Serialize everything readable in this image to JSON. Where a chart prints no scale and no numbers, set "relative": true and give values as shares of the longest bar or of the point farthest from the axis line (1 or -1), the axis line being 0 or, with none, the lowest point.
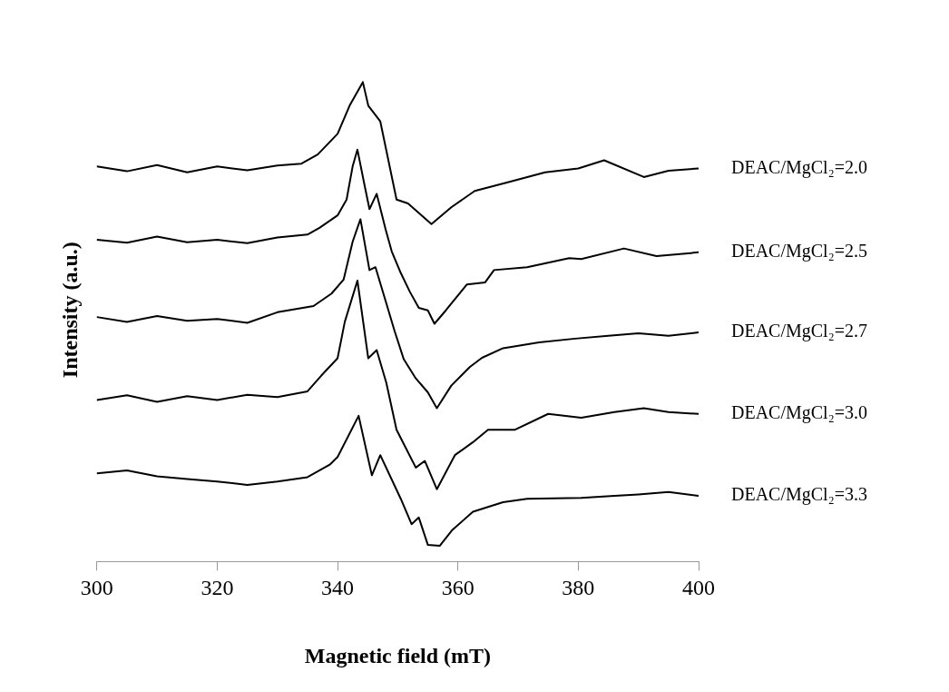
{
  "chart_data": {
    "type": "line",
    "xlabel": "Magnetic field (mT)",
    "ylabel": "Intensity (a.u.)",
    "relative": true,
    "xlim": [
      300,
      400
    ],
    "xticks": [
      300,
      320,
      340,
      360,
      380,
      400
    ],
    "grid": false,
    "legend": false,
    "marker": "none",
    "line_style": "solid",
    "series": [
      {
        "name": "DEAC/MgCl₂=2.0",
        "color": "#000000",
        "x": [
          300,
          305,
          310,
          315,
          320,
          325,
          330,
          334,
          336.7,
          340,
          342,
          344.2,
          345.1,
          347.1,
          349.8,
          351.7,
          355.6,
          358.9,
          362.8,
          368,
          374.5,
          380,
          384.3,
          390.9,
          395,
          400
        ],
        "values": [
          0.824,
          0.814,
          0.827,
          0.812,
          0.824,
          0.816,
          0.826,
          0.83,
          0.849,
          0.892,
          0.951,
          1.0,
          0.951,
          0.918,
          0.755,
          0.747,
          0.704,
          0.739,
          0.773,
          0.79,
          0.812,
          0.82,
          0.837,
          0.802,
          0.815,
          0.82
        ]
      },
      {
        "name": "DEAC/MgCl₂=2.5",
        "color": "#000000",
        "x": [
          300,
          305,
          310,
          315,
          320,
          325,
          330,
          335,
          337,
          340,
          341.5,
          342.5,
          343.3,
          344.5,
          345.3,
          346.5,
          348,
          349,
          350.5,
          352,
          353.5,
          355,
          356.1,
          358,
          361.5,
          364.5,
          366,
          371.5,
          378.5,
          380.5,
          387.6,
          393,
          400
        ],
        "values": [
          0.671,
          0.665,
          0.678,
          0.666,
          0.671,
          0.664,
          0.676,
          0.682,
          0.696,
          0.722,
          0.755,
          0.824,
          0.859,
          0.784,
          0.735,
          0.767,
          0.692,
          0.647,
          0.602,
          0.563,
          0.529,
          0.524,
          0.496,
          0.524,
          0.578,
          0.582,
          0.608,
          0.614,
          0.633,
          0.631,
          0.653,
          0.637,
          0.645
        ]
      },
      {
        "name": "DEAC/MgCl₂=2.7",
        "color": "#000000",
        "x": [
          300,
          305,
          310,
          315,
          320,
          325,
          330,
          336,
          339,
          341,
          342.5,
          343.8,
          345.3,
          346.3,
          348,
          349.5,
          351,
          353,
          355,
          356.5,
          358.9,
          362,
          364,
          367.5,
          373.5,
          379.5,
          385,
          390,
          395,
          400
        ],
        "values": [
          0.51,
          0.5,
          0.512,
          0.502,
          0.506,
          0.498,
          0.52,
          0.533,
          0.559,
          0.588,
          0.667,
          0.714,
          0.608,
          0.614,
          0.543,
          0.48,
          0.422,
          0.382,
          0.353,
          0.32,
          0.367,
          0.406,
          0.425,
          0.445,
          0.457,
          0.465,
          0.471,
          0.476,
          0.471,
          0.478
        ]
      },
      {
        "name": "DEAC/MgCl₂=3.0",
        "color": "#000000",
        "x": [
          300,
          305,
          310,
          315,
          320,
          325,
          330,
          335,
          337.3,
          340,
          341.2,
          343.3,
          345.1,
          346.5,
          348.1,
          349.8,
          353,
          354.5,
          356.5,
          359.5,
          362.5,
          365,
          369.5,
          375,
          380.5,
          386,
          390.9,
          395,
          400
        ],
        "values": [
          0.337,
          0.347,
          0.333,
          0.345,
          0.337,
          0.348,
          0.343,
          0.355,
          0.388,
          0.424,
          0.5,
          0.586,
          0.424,
          0.441,
          0.373,
          0.275,
          0.196,
          0.21,
          0.151,
          0.222,
          0.249,
          0.275,
          0.275,
          0.308,
          0.3,
          0.312,
          0.32,
          0.312,
          0.308
        ]
      },
      {
        "name": "DEAC/MgCl₂=3.3",
        "color": "#000000",
        "x": [
          300,
          305,
          310,
          315,
          320,
          325,
          330,
          335,
          338.7,
          340,
          343.5,
          345.7,
          347.1,
          350.5,
          352.3,
          353.5,
          355,
          357,
          359,
          362.5,
          367.5,
          371.5,
          380.5,
          386,
          390,
          395,
          400
        ],
        "values": [
          0.184,
          0.19,
          0.178,
          0.172,
          0.167,
          0.16,
          0.167,
          0.176,
          0.202,
          0.218,
          0.304,
          0.18,
          0.222,
          0.131,
          0.078,
          0.092,
          0.035,
          0.033,
          0.065,
          0.104,
          0.124,
          0.131,
          0.133,
          0.137,
          0.14,
          0.145,
          0.137
        ]
      }
    ]
  }
}
